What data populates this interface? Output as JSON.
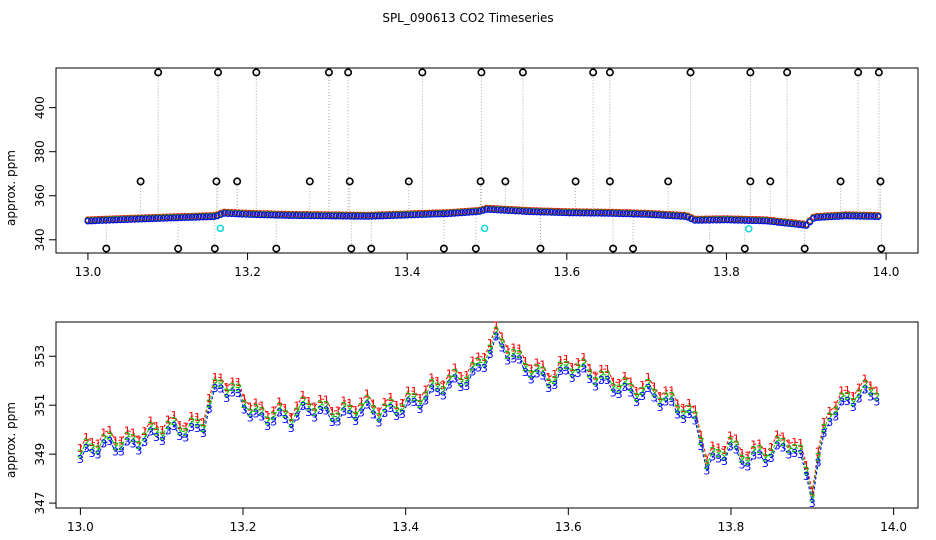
{
  "figure_title": "SPL_090613  CO2 Timeseries",
  "chart_data": [
    {
      "type": "scatter",
      "panel": "top",
      "title": "SPL_090613  CO2 Timeseries",
      "xlabel": "",
      "ylabel": "approx. ppm",
      "xlim": [
        12.96,
        14.04
      ],
      "ylim": [
        334,
        418
      ],
      "xticks": [
        13.0,
        13.2,
        13.4,
        13.6,
        13.8,
        14.0
      ],
      "xtick_labels": [
        "13.0",
        "13.2",
        "13.4",
        "13.6",
        "13.8",
        "14.0"
      ],
      "yticks": [
        340,
        360,
        380,
        400
      ],
      "ytick_labels": [
        "340",
        "360",
        "380",
        "400"
      ],
      "colors": {
        "s1": "#ff0000",
        "s2": "#00bb00",
        "s3": "#0000ff",
        "outlier": "#000000",
        "cyan": "#00d8d8",
        "drop_line": "#aaaaaa"
      },
      "baseline_profile": [
        [
          13.0,
          348.5
        ],
        [
          13.05,
          349.2
        ],
        [
          13.1,
          349.8
        ],
        [
          13.16,
          350.5
        ],
        [
          13.17,
          352.0
        ],
        [
          13.2,
          351.5
        ],
        [
          13.25,
          351.0
        ],
        [
          13.3,
          350.8
        ],
        [
          13.35,
          350.6
        ],
        [
          13.4,
          351.2
        ],
        [
          13.45,
          351.8
        ],
        [
          13.49,
          352.8
        ],
        [
          13.5,
          353.8
        ],
        [
          13.55,
          352.8
        ],
        [
          13.6,
          352.2
        ],
        [
          13.65,
          352.0
        ],
        [
          13.7,
          351.5
        ],
        [
          13.75,
          350.5
        ],
        [
          13.76,
          348.8
        ],
        [
          13.8,
          349.0
        ],
        [
          13.85,
          348.5
        ],
        [
          13.9,
          346.5
        ],
        [
          13.91,
          350.0
        ],
        [
          13.95,
          350.8
        ],
        [
          13.99,
          350.5
        ]
      ],
      "outliers_high": [
        13.088,
        13.163,
        13.211,
        13.302,
        13.326,
        13.419,
        13.493,
        13.545,
        13.633,
        13.654,
        13.755,
        13.83,
        13.876,
        13.965,
        13.991
      ],
      "outliers_mid": [
        13.066,
        13.161,
        13.187,
        13.278,
        13.328,
        13.402,
        13.492,
        13.523,
        13.611,
        13.654,
        13.727,
        13.83,
        13.855,
        13.943,
        13.993
      ],
      "outliers_low": [
        13.023,
        13.113,
        13.159,
        13.236,
        13.33,
        13.355,
        13.446,
        13.486,
        13.567,
        13.658,
        13.683,
        13.779,
        13.823,
        13.898,
        13.994
      ],
      "cyan_points": [
        [
          13.166,
          345.2
        ],
        [
          13.497,
          345.2
        ],
        [
          13.828,
          345.0
        ]
      ],
      "high_value": 416,
      "mid_value": 366.5,
      "low_value": 336
    },
    {
      "type": "line",
      "panel": "bottom",
      "title": "",
      "xlabel": "",
      "ylabel": "approx. ppm",
      "xlim": [
        12.97,
        14.03
      ],
      "ylim": [
        346.8,
        354.4
      ],
      "xticks": [
        13.0,
        13.2,
        13.4,
        13.6,
        13.8,
        14.0
      ],
      "xtick_labels": [
        "13.0",
        "13.2",
        "13.4",
        "13.6",
        "13.8",
        "14.0"
      ],
      "yticks": [
        347,
        349,
        351,
        353
      ],
      "ytick_labels": [
        "347",
        "349",
        "351",
        "353"
      ],
      "series": [
        {
          "name": "1",
          "color": "#ff0000",
          "offset": 0.45
        },
        {
          "name": "2",
          "color": "#00bb00",
          "offset": 0.22
        },
        {
          "name": "3",
          "color": "#0000ff",
          "offset": 0.0
        }
      ],
      "profile": [
        [
          13.0,
          348.8
        ],
        [
          13.02,
          349.1
        ],
        [
          13.04,
          349.3
        ],
        [
          13.06,
          349.4
        ],
        [
          13.08,
          349.6
        ],
        [
          13.1,
          349.7
        ],
        [
          13.13,
          349.9
        ],
        [
          13.15,
          350.1
        ],
        [
          13.16,
          351.2
        ],
        [
          13.17,
          351.7
        ],
        [
          13.19,
          351.3
        ],
        [
          13.2,
          350.9
        ],
        [
          13.22,
          350.4
        ],
        [
          13.24,
          350.6
        ],
        [
          13.26,
          350.3
        ],
        [
          13.28,
          350.7
        ],
        [
          13.3,
          350.6
        ],
        [
          13.32,
          350.6
        ],
        [
          13.35,
          350.7
        ],
        [
          13.37,
          350.4
        ],
        [
          13.4,
          351.0
        ],
        [
          13.42,
          351.2
        ],
        [
          13.45,
          351.6
        ],
        [
          13.47,
          351.9
        ],
        [
          13.49,
          352.5
        ],
        [
          13.51,
          353.6
        ],
        [
          13.52,
          353.2
        ],
        [
          13.54,
          352.5
        ],
        [
          13.56,
          352.2
        ],
        [
          13.58,
          352.0
        ],
        [
          13.6,
          352.4
        ],
        [
          13.62,
          352.1
        ],
        [
          13.64,
          351.9
        ],
        [
          13.66,
          351.8
        ],
        [
          13.68,
          351.4
        ],
        [
          13.7,
          351.3
        ],
        [
          13.72,
          351.0
        ],
        [
          13.74,
          350.8
        ],
        [
          13.76,
          350.2
        ],
        [
          13.77,
          348.4
        ],
        [
          13.79,
          348.8
        ],
        [
          13.8,
          349.2
        ],
        [
          13.81,
          348.7
        ],
        [
          13.83,
          348.9
        ],
        [
          13.85,
          349.0
        ],
        [
          13.87,
          349.2
        ],
        [
          13.89,
          348.5
        ],
        [
          13.9,
          347.3
        ],
        [
          13.91,
          349.1
        ],
        [
          13.92,
          350.6
        ],
        [
          13.94,
          351.0
        ],
        [
          13.96,
          351.2
        ],
        [
          13.98,
          351.4
        ]
      ]
    }
  ]
}
